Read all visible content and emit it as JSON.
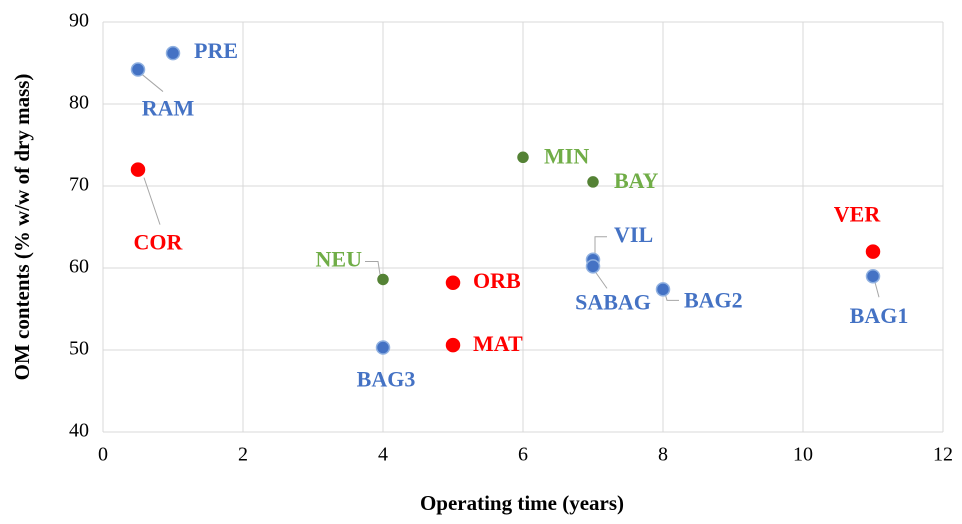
{
  "chart_data": {
    "type": "scatter",
    "x_label": "Operating time (years)",
    "y_label": "OM contents (%  w/w of dry mass)",
    "xlim": [
      0,
      12
    ],
    "xticks": [
      0,
      2,
      4,
      6,
      8,
      10,
      12
    ],
    "ylim": [
      40,
      90
    ],
    "yticks": [
      40,
      50,
      60,
      70,
      80,
      90
    ],
    "grid": true,
    "series": [
      {
        "color": "#4472c4",
        "label_color": "#4472c4",
        "labels": [
          "PRE",
          "RAM",
          "VIL",
          "SABAG",
          "BAG2",
          "BAG3",
          "BAG1"
        ],
        "x": [
          1,
          0.5,
          7,
          7,
          8,
          4,
          11
        ],
        "values": [
          86.2,
          84.2,
          61,
          60.2,
          57.4,
          50.3,
          59
        ]
      },
      {
        "color": "#ff0000",
        "label_color": "#ff0000",
        "labels": [
          "COR",
          "ORB",
          "MAT",
          "VER"
        ],
        "x": [
          0.5,
          5,
          5,
          11
        ],
        "values": [
          72,
          58.2,
          50.6,
          62
        ]
      },
      {
        "color": "#548235",
        "label_color": "#70ad47",
        "labels": [
          "MIN",
          "BAY",
          "NEU"
        ],
        "x": [
          6,
          7,
          4
        ],
        "values": [
          73.5,
          70.5,
          58.6
        ]
      }
    ]
  }
}
